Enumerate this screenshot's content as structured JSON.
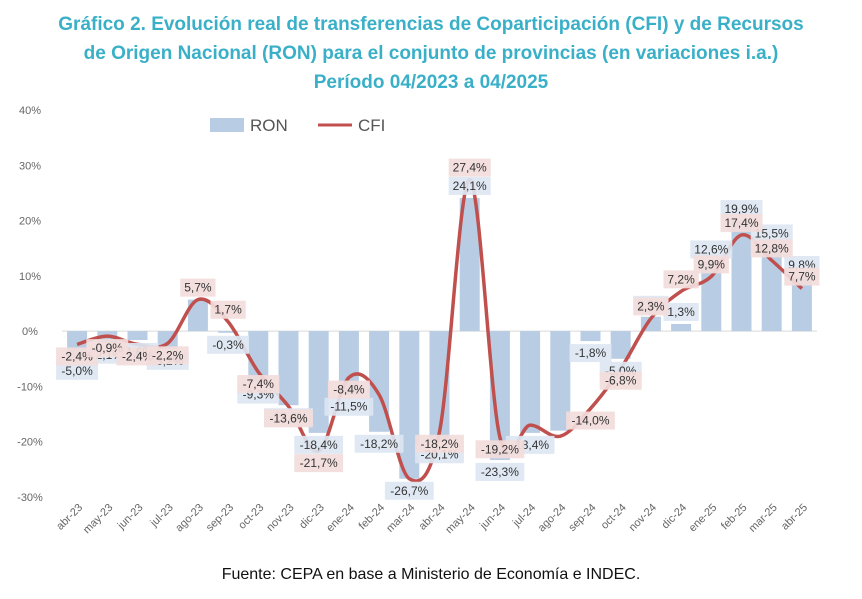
{
  "title_lines": [
    "Gráfico 2. Evolución real de transferencias de Coparticipación (CFI) y de Recursos",
    "de Origen Nacional (RON) para el conjunto de provincias (en variaciones i.a.)",
    "Período 04/2023 a 04/2025"
  ],
  "source": "Fuente: CEPA en base a Ministerio de Economía e INDEC.",
  "colors": {
    "title": "#3ab0c8",
    "ron_bar": "#b8cce4",
    "cfi_line": "#c0504d",
    "ron_label_bg": "#dce6f2",
    "cfi_label_bg": "#f2dcdb"
  },
  "chart_data": {
    "type": "bar",
    "categories": [
      "abr-23",
      "may-23",
      "jun-23",
      "jul-23",
      "ago-23",
      "sep-23",
      "oct-23",
      "nov-23",
      "dic-23",
      "ene-24",
      "feb-24",
      "mar-24",
      "abr-24",
      "may-24",
      "jun-24",
      "jul-24",
      "ago-24",
      "sep-24",
      "oct-24",
      "nov-24",
      "dic-24",
      "ene-25",
      "feb-25",
      "mar-25",
      "abr-25"
    ],
    "series": [
      {
        "name": "RON",
        "kind": "bar",
        "values": [
          -5.0,
          -2.1,
          -1.6,
          -3.2,
          5.7,
          -0.3,
          -9.3,
          -13.4,
          -18.4,
          -11.5,
          -18.2,
          -26.7,
          -20.1,
          24.1,
          -23.3,
          -18.4,
          -18.0,
          -1.8,
          -5.0,
          2.6,
          1.3,
          12.6,
          19.9,
          15.5,
          9.8
        ],
        "labels": [
          "-5,0%",
          "-2,1%",
          "-1,6%",
          "-3,2%",
          "",
          "-0,3%",
          "-9,3%",
          "-13,4%",
          "-18,4%",
          "-11,5%",
          "-18,2%",
          "-26,7%",
          "-20,1%",
          "24,1%",
          "-23,3%",
          "-18,4%",
          "",
          "-1,8%",
          "-5,0%",
          "2,6%",
          "1,3%",
          "12,6%",
          "19,9%",
          "15,5%",
          "9,8%"
        ]
      },
      {
        "name": "CFI",
        "kind": "line",
        "values": [
          -2.4,
          -0.9,
          -2.4,
          -2.2,
          5.7,
          1.7,
          -7.4,
          -13.6,
          -21.7,
          -8.4,
          -11.5,
          -26.7,
          -18.2,
          27.4,
          -19.2,
          -17.0,
          -19.0,
          -14.0,
          -6.8,
          2.3,
          7.2,
          9.9,
          17.4,
          12.8,
          7.7
        ],
        "labels": [
          "-2,4%",
          "-0,9%",
          "-2,4%",
          "-2,2%",
          "5,7%",
          "1,7%",
          "-7,4%",
          "-13,6%",
          "-21,7%",
          "-8,4%",
          "",
          "",
          "-18,2%",
          "27,4%",
          "-19,2%",
          "",
          "",
          "-14,0%",
          "-6,8%",
          "2,3%",
          "7,2%",
          "9,9%",
          "17,4%",
          "12,8%",
          "7,7%"
        ]
      }
    ],
    "ylim": [
      -30,
      40
    ],
    "yticks": [
      -30,
      -20,
      -10,
      0,
      10,
      20,
      30,
      40
    ],
    "ytick_labels": [
      "-30%",
      "-20%",
      "-10%",
      "0%",
      "10%",
      "20%",
      "30%",
      "40%"
    ],
    "grid": false,
    "legend": "top-left"
  }
}
